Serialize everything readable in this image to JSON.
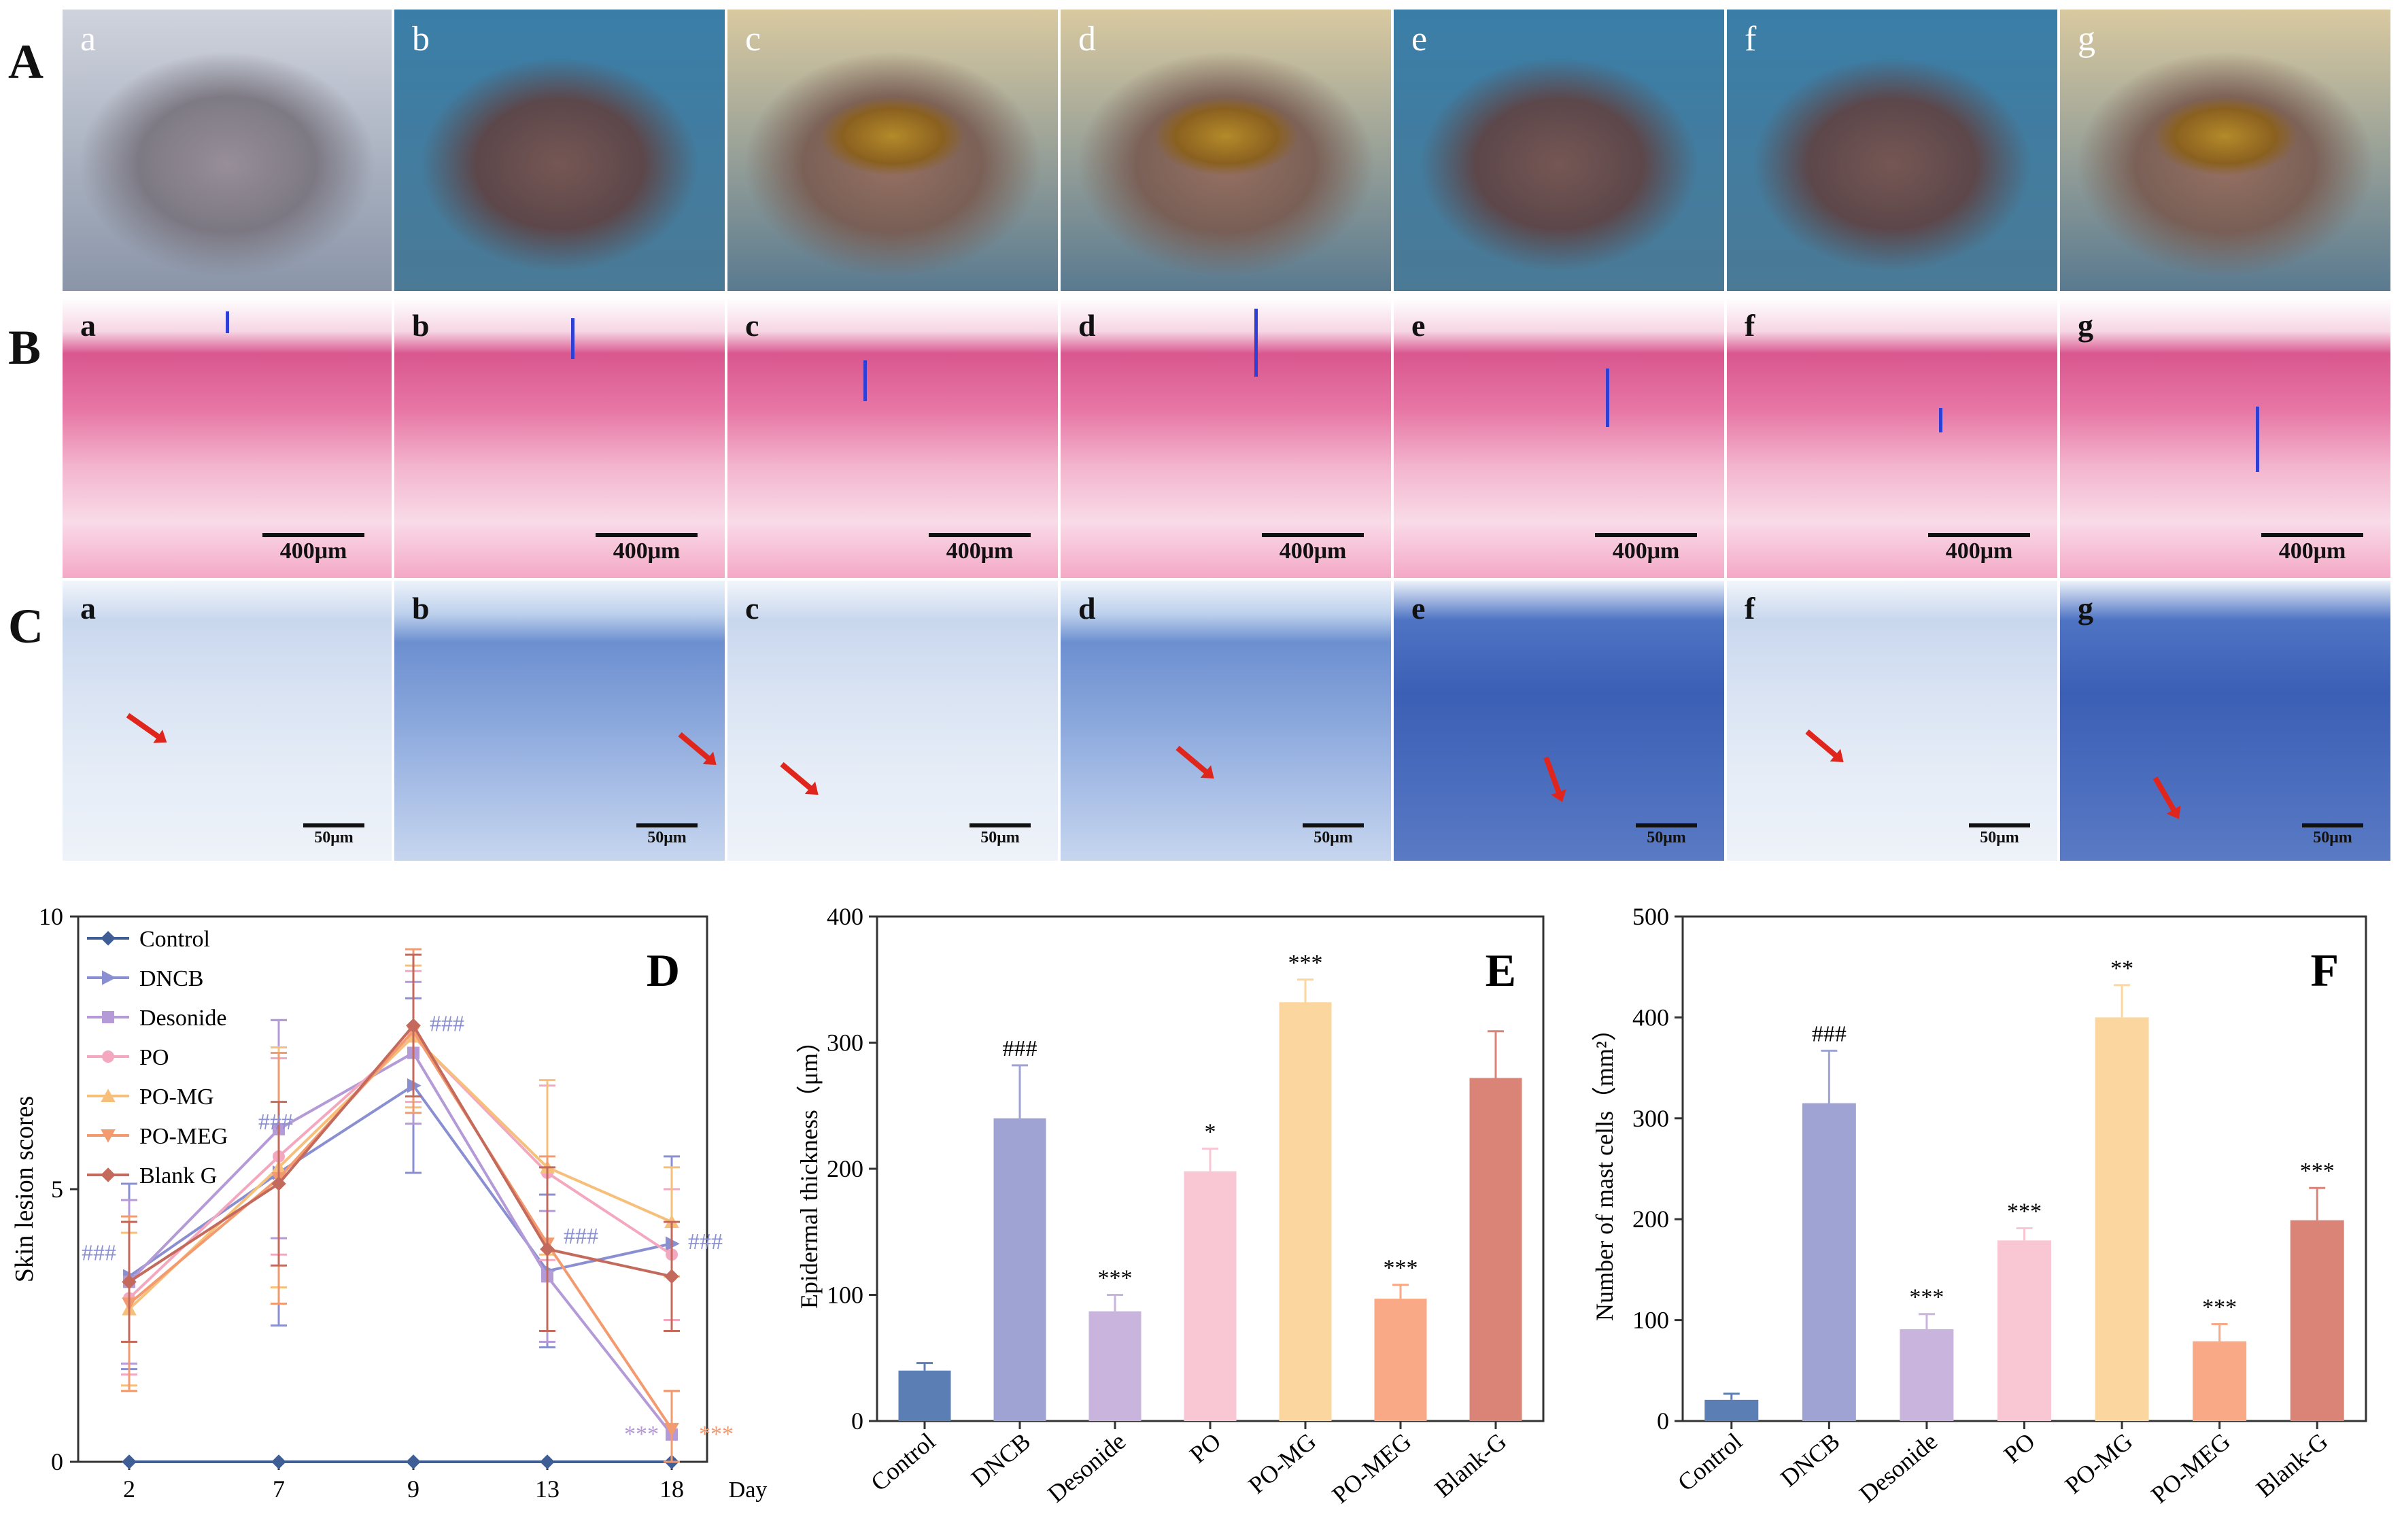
{
  "row_labels": {
    "A": "A",
    "B": "B",
    "C": "C"
  },
  "panel_letters": [
    "a",
    "b",
    "c",
    "d",
    "e",
    "f",
    "g"
  ],
  "scale_B": "400μm",
  "scale_C": "50μm",
  "colors": {
    "Control": "#5b7fb5",
    "DNCB": "#9ea3d4",
    "Desonide": "#c9b4dd",
    "PO": "#f9c7d4",
    "PO-MG": "#fbd69f",
    "PO-MEG": "#f9a985",
    "Blank-G": "#d98476"
  },
  "chart_data": [
    {
      "type": "line",
      "panel_label": "D",
      "title": "",
      "xlabel": "Day",
      "ylabel": "Skin lesion scores",
      "x": [
        2,
        7,
        9,
        13,
        18
      ],
      "ylim": [
        0,
        10
      ],
      "yticks": [
        0,
        5,
        10
      ],
      "series": [
        {
          "name": "Control",
          "values": [
            0,
            0,
            0,
            0,
            0
          ],
          "err": [
            0,
            0,
            0,
            0,
            0
          ],
          "marker": "diamond",
          "color": "#3f5e96"
        },
        {
          "name": "DNCB",
          "values": [
            3.4,
            5.3,
            6.9,
            3.5,
            4.0
          ],
          "err": [
            1.7,
            2.8,
            1.6,
            1.4,
            1.6
          ],
          "marker": "triangle-right",
          "color": "#8a8fd1"
        },
        {
          "name": "Desonide",
          "values": [
            3.3,
            6.1,
            7.5,
            3.4,
            0.5
          ],
          "err": [
            1.5,
            2.0,
            1.3,
            1.2,
            0.8
          ],
          "marker": "square",
          "color": "#b49ad6"
        },
        {
          "name": "PO",
          "values": [
            3.0,
            5.6,
            7.8,
            5.3,
            3.8
          ],
          "err": [
            1.4,
            1.8,
            1.2,
            1.6,
            1.2
          ],
          "marker": "circle",
          "color": "#f4a8bf"
        },
        {
          "name": "PO-MG",
          "values": [
            2.8,
            5.4,
            7.8,
            5.4,
            4.4
          ],
          "err": [
            1.4,
            2.2,
            1.3,
            1.6,
            1.0
          ],
          "marker": "triangle-up",
          "color": "#f7c07a"
        },
        {
          "name": "PO-MEG",
          "values": [
            2.9,
            5.2,
            7.9,
            4.0,
            0.6
          ],
          "err": [
            1.6,
            2.3,
            1.5,
            1.6,
            0.7
          ],
          "marker": "triangle-down",
          "color": "#f39a6f"
        },
        {
          "name": "Blank G",
          "values": [
            3.3,
            5.1,
            8.0,
            3.9,
            3.4
          ],
          "err": [
            1.1,
            1.5,
            1.3,
            1.5,
            1.0
          ],
          "marker": "diamond",
          "color": "#c46a5c"
        }
      ],
      "annotations": [
        {
          "x": 2,
          "y": 3.7,
          "text": "###",
          "color": "#8a8fd1"
        },
        {
          "x": 7,
          "y": 6.1,
          "text": "###",
          "color": "#8a8fd1"
        },
        {
          "x": 9,
          "y": 7.9,
          "text": "###",
          "color": "#8a8fd1"
        },
        {
          "x": 13,
          "y": 4.0,
          "text": "###",
          "color": "#8a8fd1"
        },
        {
          "x": 18,
          "y": 3.9,
          "text": "###",
          "color": "#8a8fd1"
        },
        {
          "x": 18,
          "y": 0.6,
          "text": "***",
          "color": "#b49ad6"
        },
        {
          "x": 18,
          "y": 0.6,
          "text": "***",
          "color": "#f39a6f"
        }
      ],
      "legend": "top-left"
    },
    {
      "type": "bar",
      "panel_label": "E",
      "title": "",
      "xlabel": "",
      "ylabel": "Epidermal thickness（μm）",
      "categories": [
        "Control",
        "DNCB",
        "Desonide",
        "PO",
        "PO-MG",
        "PO-MEG",
        "Blank-G"
      ],
      "values": [
        40,
        240,
        87,
        198,
        332,
        97,
        272
      ],
      "err": [
        6,
        42,
        13,
        18,
        18,
        11,
        37
      ],
      "labels": [
        "",
        "###",
        "***",
        "*",
        "***",
        "***",
        ""
      ],
      "ylim": [
        0,
        400
      ],
      "yticks": [
        0,
        100,
        200,
        300,
        400
      ]
    },
    {
      "type": "bar",
      "panel_label": "F",
      "title": "",
      "xlabel": "",
      "ylabel": "Number of mast cells（mm²）",
      "categories": [
        "Control",
        "DNCB",
        "Desonide",
        "PO",
        "PO-MG",
        "PO-MEG",
        "Blank-G"
      ],
      "values": [
        21,
        315,
        91,
        179,
        400,
        79,
        199
      ],
      "err": [
        6,
        52,
        15,
        12,
        32,
        17,
        32
      ],
      "labels": [
        "",
        "###",
        "***",
        "***",
        "**",
        "***",
        "***"
      ],
      "ylim": [
        0,
        500
      ],
      "yticks": [
        0,
        100,
        200,
        300,
        400,
        500
      ]
    }
  ]
}
